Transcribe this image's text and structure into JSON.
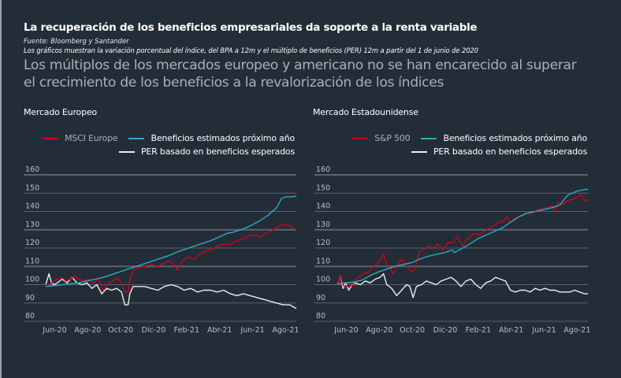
{
  "header": {
    "title": "La recuperación de los beneficios empresariales da soporte a la renta variable",
    "source": "Fuente:  Bloomberg y Santander",
    "note": "Los gráficos muestran la variación porcentual del índice, del BPA a 12m y el múltiplo de beneficios (PER) 12m a partir del 1 de junio de 2020",
    "subtitle_line1": "Los múltiplos de los mercados europeo y americano no se han encarecido al superar",
    "subtitle_line2": "el crecimiento de los beneficios a la revalorización de los índices"
  },
  "colors": {
    "background": "#232d38",
    "index": "#d0021b",
    "earnings": "#2fa8c0",
    "per": "#e9edf0",
    "grid": "#5a6470",
    "subtitle": "#a9afb6"
  },
  "chart_data": [
    {
      "type": "line",
      "title": "Mercado Europeo",
      "xlabel": "",
      "ylabel": "",
      "x_unit": "months since 1 Jun 2020",
      "xlim": [
        0,
        15.2
      ],
      "ylim": [
        80,
        160
      ],
      "yticks": [
        160,
        150,
        140,
        130,
        120,
        110,
        100,
        90,
        80
      ],
      "xticks": [
        {
          "label": "Jun-20",
          "x": 0.5
        },
        {
          "label": "Ago-20",
          "x": 2.5
        },
        {
          "label": "Oct-20",
          "x": 4.5
        },
        {
          "label": "Dic-20",
          "x": 6.5
        },
        {
          "label": "Feb-21",
          "x": 8.5
        },
        {
          "label": "Abr-21",
          "x": 10.5
        },
        {
          "label": "Jun-21",
          "x": 12.5
        },
        {
          "label": "Ago-21",
          "x": 14.5
        }
      ],
      "grid": true,
      "legend_position": "top-right",
      "series": [
        {
          "name": "MSCI Europe",
          "color_key": "index",
          "x": [
            0,
            0.3,
            0.5,
            0.7,
            1.0,
            1.2,
            1.5,
            1.8,
            2.0,
            2.3,
            2.6,
            2.9,
            3.2,
            3.5,
            3.8,
            4.1,
            4.3,
            4.6,
            4.8,
            5.0,
            5.1,
            5.3,
            5.6,
            6.0,
            6.4,
            6.8,
            7.2,
            7.5,
            7.8,
            8.0,
            8.3,
            8.6,
            9.0,
            9.3,
            9.6,
            10.0,
            10.4,
            10.8,
            11.2,
            11.6,
            12.0,
            12.4,
            12.8,
            13.0,
            13.3,
            13.6,
            14.0,
            14.4,
            14.8,
            15.2
          ],
          "values": [
            100,
            100.5,
            102,
            103,
            104,
            102,
            103,
            105,
            103,
            102,
            103,
            101,
            103,
            97,
            101,
            102,
            104,
            101,
            96,
            96,
            102,
            108,
            109,
            110,
            111,
            110,
            112,
            113,
            111,
            108,
            113,
            115,
            114,
            116,
            118,
            119,
            121,
            122,
            122,
            124,
            125,
            127,
            127,
            126,
            128,
            129,
            131,
            133,
            132,
            130
          ]
        },
        {
          "name": "Beneficios estimados próximo año",
          "color_key": "earnings",
          "x": [
            0,
            0.5,
            1.0,
            1.5,
            2.0,
            2.5,
            3.0,
            3.5,
            4.0,
            4.5,
            5.0,
            5.5,
            6.0,
            6.5,
            7.0,
            7.5,
            8.0,
            8.5,
            9.0,
            9.5,
            10.0,
            10.5,
            11.0,
            11.5,
            12.0,
            12.5,
            13.0,
            13.5,
            14.0,
            14.3,
            14.6,
            15.0,
            15.2
          ],
          "values": [
            99,
            99.5,
            100,
            100.5,
            101,
            102,
            103,
            104,
            105.5,
            107,
            108.5,
            110,
            111.5,
            113,
            114.5,
            116,
            118,
            119.5,
            121,
            122.5,
            124,
            126,
            128,
            129,
            130.5,
            132.5,
            135,
            138,
            142,
            147,
            148,
            148,
            148.5
          ]
        },
        {
          "name": "PER basado en beneficios esperados",
          "color_key": "per",
          "x": [
            0,
            0.2,
            0.35,
            0.5,
            0.7,
            1.0,
            1.3,
            1.6,
            1.9,
            2.2,
            2.5,
            2.8,
            3.1,
            3.4,
            3.7,
            4.0,
            4.3,
            4.6,
            4.8,
            5.0,
            5.1,
            5.3,
            5.6,
            6.0,
            6.4,
            6.8,
            7.2,
            7.6,
            8.0,
            8.4,
            8.8,
            9.2,
            9.6,
            10.0,
            10.4,
            10.8,
            11.2,
            11.6,
            12.0,
            12.4,
            12.8,
            13.2,
            13.6,
            14.0,
            14.4,
            14.8,
            15.2
          ],
          "values": [
            100,
            106,
            101,
            100,
            101,
            103,
            101,
            104,
            101,
            100,
            101,
            98,
            100,
            95,
            98,
            97,
            98,
            96,
            89,
            89,
            95,
            99,
            99,
            99,
            98,
            97,
            99,
            100,
            99,
            97,
            98,
            96,
            97,
            97,
            96,
            97,
            95,
            94,
            95,
            94,
            93,
            92,
            91,
            90,
            89,
            89,
            87
          ]
        }
      ]
    },
    {
      "type": "line",
      "title": "Mercado Estadounidense",
      "xlabel": "",
      "ylabel": "",
      "x_unit": "months since 1 Jun 2020",
      "xlim": [
        0,
        15.2
      ],
      "ylim": [
        80,
        160
      ],
      "yticks": [
        160,
        150,
        140,
        130,
        120,
        110,
        100,
        90,
        80
      ],
      "xticks": [
        {
          "label": "Jun-20",
          "x": 0.5
        },
        {
          "label": "Ago-20",
          "x": 2.5
        },
        {
          "label": "Oct-20",
          "x": 4.5
        },
        {
          "label": "Dic-20",
          "x": 6.5
        },
        {
          "label": "Feb-21",
          "x": 8.5
        },
        {
          "label": "Abr-21",
          "x": 10.5
        },
        {
          "label": "Jun-21",
          "x": 12.5
        },
        {
          "label": "Ago-21",
          "x": 14.5
        }
      ],
      "grid": true,
      "legend_position": "top-right",
      "series": [
        {
          "name": "S&P 500",
          "color_key": "index",
          "x": [
            0,
            0.2,
            0.35,
            0.5,
            0.7,
            0.9,
            1.1,
            1.3,
            1.6,
            1.9,
            2.2,
            2.5,
            2.8,
            3.0,
            3.2,
            3.4,
            3.6,
            3.9,
            4.2,
            4.5,
            4.7,
            4.9,
            5.0,
            5.2,
            5.5,
            5.8,
            6.1,
            6.4,
            6.7,
            7.0,
            7.3,
            7.6,
            7.8,
            8.0,
            8.3,
            8.6,
            8.9,
            9.2,
            9.5,
            9.8,
            10.1,
            10.3,
            10.5,
            10.7,
            11.0,
            11.4,
            11.8,
            12.2,
            12.6,
            13.0,
            13.2,
            13.4,
            13.7,
            14.0,
            14.4,
            14.8,
            15.0,
            15.2
          ],
          "values": [
            100,
            105,
            100,
            98,
            101,
            99,
            103,
            104,
            106,
            107,
            110,
            112,
            117,
            111,
            109,
            106,
            110,
            114,
            111,
            107,
            108,
            116,
            118,
            119,
            121,
            120,
            122,
            119,
            123,
            123,
            126,
            121,
            124,
            126,
            128,
            127,
            129,
            131,
            132,
            134,
            135,
            137,
            134,
            136,
            137,
            139,
            139,
            141,
            142,
            143,
            140,
            145,
            144,
            146,
            147,
            149,
            146,
            146
          ]
        },
        {
          "name": "Beneficios estimados próximo año",
          "color_key": "earnings",
          "x": [
            0,
            0.5,
            1.0,
            1.5,
            2.0,
            2.5,
            3.0,
            3.5,
            4.0,
            4.5,
            5.0,
            5.5,
            6.0,
            6.5,
            7.0,
            7.1,
            7.5,
            8.0,
            8.5,
            9.0,
            9.5,
            10.0,
            10.5,
            11.0,
            11.5,
            12.0,
            12.5,
            13.0,
            13.5,
            13.8,
            14.0,
            14.5,
            15.0,
            15.2
          ],
          "values": [
            100.5,
            101,
            101.5,
            102.5,
            105,
            107,
            108.5,
            110,
            111,
            112,
            114,
            115.5,
            116.5,
            117.5,
            119,
            117.5,
            119.5,
            122,
            125,
            127,
            129,
            131,
            134,
            137,
            139,
            140,
            141,
            142,
            143.5,
            147,
            149,
            151,
            152,
            152
          ]
        },
        {
          "name": "PER basado en beneficios esperados",
          "color_key": "per",
          "x": [
            0,
            0.2,
            0.35,
            0.5,
            0.7,
            0.9,
            1.1,
            1.4,
            1.7,
            2.0,
            2.3,
            2.6,
            2.8,
            3.0,
            3.3,
            3.6,
            3.9,
            4.2,
            4.4,
            4.6,
            4.8,
            5.1,
            5.4,
            5.7,
            6.0,
            6.3,
            6.6,
            6.9,
            7.2,
            7.5,
            7.8,
            8.1,
            8.4,
            8.7,
            9.0,
            9.3,
            9.6,
            9.9,
            10.2,
            10.5,
            10.8,
            11.1,
            11.4,
            11.7,
            12.0,
            12.3,
            12.6,
            12.9,
            13.2,
            13.5,
            13.8,
            14.1,
            14.4,
            14.7,
            15.0,
            15.2
          ],
          "values": [
            100,
            105,
            98,
            101,
            97,
            100,
            101,
            100,
            102,
            101,
            103,
            104,
            106,
            100,
            98,
            94,
            97,
            100,
            99,
            93,
            99,
            100,
            102,
            101,
            100,
            102,
            103,
            104,
            102,
            99,
            102,
            103,
            100,
            98,
            101,
            102,
            104,
            103,
            102,
            97,
            96,
            97,
            97,
            96,
            98,
            97,
            98,
            97,
            97,
            96,
            96,
            96,
            97,
            96,
            95,
            95
          ]
        }
      ]
    }
  ],
  "panels": [
    {
      "title": "Mercado Europeo",
      "legend": [
        "MSCI Europe",
        "Beneficios estimados próximo año",
        "PER basado en beneficios esperados"
      ]
    },
    {
      "title": "Mercado Estadounidense",
      "legend": [
        "S&P 500",
        "Beneficios estimados próximo año",
        "PER basado en beneficios esperados"
      ]
    }
  ]
}
